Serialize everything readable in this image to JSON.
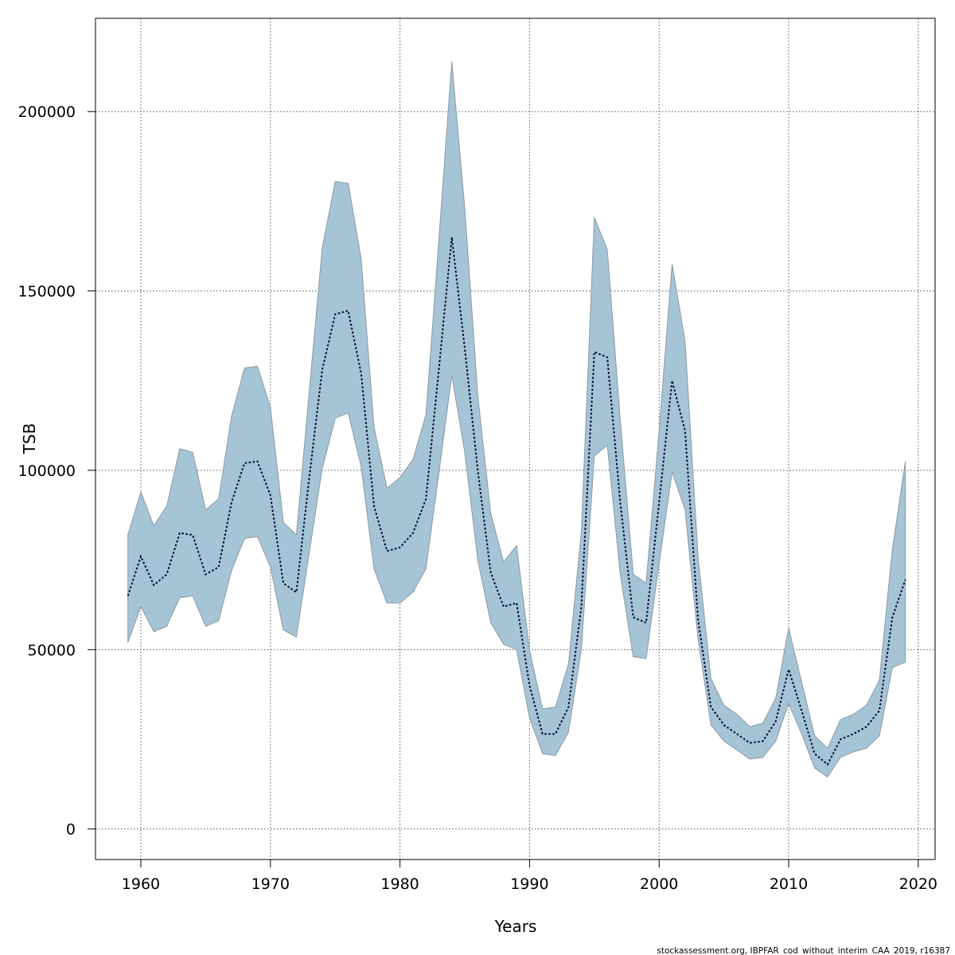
{
  "chart_data": {
    "type": "area",
    "title": "",
    "xlabel": "Years",
    "ylabel": "TSB",
    "xlim": [
      1956.5,
      2021.3
    ],
    "ylim": [
      -8500,
      226000
    ],
    "x_ticks": [
      1960,
      1970,
      1980,
      1990,
      2000,
      2010,
      2020
    ],
    "y_ticks": [
      0,
      50000,
      100000,
      150000,
      200000
    ],
    "grid": true,
    "colors": {
      "band": "#a5c4d6",
      "band_edge": "#8c9aa4",
      "line": "#000033",
      "grid": "#555555"
    },
    "series": [
      {
        "x": [
          1959,
          1960,
          1961,
          1962,
          1963,
          1964,
          1965,
          1966,
          1967,
          1968,
          1969,
          1970,
          1971,
          1972,
          1973,
          1974,
          1975,
          1976,
          1977,
          1978,
          1979,
          1980,
          1981,
          1982,
          1983,
          1984,
          1985,
          1986,
          1987,
          1988,
          1989,
          1990,
          1991,
          1992,
          1993,
          1994,
          1995,
          1996,
          1997,
          1998,
          1999,
          2000,
          2001,
          2002,
          2003,
          2004,
          2005,
          2006,
          2007,
          2008,
          2009,
          2010,
          2011,
          2012,
          2013,
          2014,
          2015,
          2016,
          2017,
          2018,
          2019
        ],
        "estimate": [
          65000,
          76000,
          68000,
          71000,
          82500,
          82000,
          71000,
          73000,
          91000,
          102000,
          102500,
          93000,
          68500,
          66000,
          98000,
          128000,
          143500,
          144500,
          127000,
          90000,
          77500,
          78500,
          82500,
          92000,
          128000,
          165000,
          134000,
          100000,
          71500,
          62000,
          63000,
          40000,
          26500,
          26500,
          34000,
          62000,
          133000,
          131500,
          91000,
          59000,
          57500,
          91000,
          125000,
          111000,
          58500,
          34000,
          29000,
          26500,
          24000,
          24500,
          30000,
          44500,
          33000,
          21000,
          18000,
          25000,
          26500,
          28500,
          33000,
          59000,
          69500
        ],
        "upper": [
          82000,
          94000,
          84500,
          90000,
          106000,
          105000,
          89000,
          92000,
          115000,
          128500,
          129000,
          117500,
          85500,
          82000,
          122000,
          162000,
          180500,
          180000,
          159000,
          112000,
          95000,
          98000,
          103000,
          115500,
          164000,
          214000,
          173000,
          121000,
          88000,
          74500,
          79000,
          50000,
          33500,
          34000,
          46000,
          83000,
          170500,
          161500,
          114000,
          71000,
          68500,
          111000,
          157500,
          136000,
          76000,
          42000,
          34500,
          32000,
          28500,
          29500,
          36500,
          56000,
          41000,
          26000,
          22500,
          30500,
          32000,
          34500,
          41500,
          78000,
          102500
        ],
        "lower": [
          52000,
          62000,
          55000,
          56500,
          64500,
          65000,
          56500,
          58000,
          72000,
          81000,
          81500,
          73000,
          55500,
          53500,
          77000,
          100500,
          114500,
          116000,
          101000,
          72500,
          63000,
          63000,
          66000,
          72500,
          99000,
          126500,
          105000,
          75000,
          57500,
          51500,
          50000,
          31000,
          21000,
          20500,
          27000,
          50000,
          104000,
          107000,
          71000,
          48000,
          47500,
          74000,
          99500,
          89000,
          53000,
          29000,
          24500,
          22000,
          19500,
          20000,
          24500,
          35000,
          26500,
          17000,
          14500,
          20000,
          21500,
          22500,
          26000,
          45000,
          46500
        ]
      }
    ]
  },
  "source_note": "stockassessment.org, IBPFAR_cod_without_interim_CAA_2019, r16387"
}
